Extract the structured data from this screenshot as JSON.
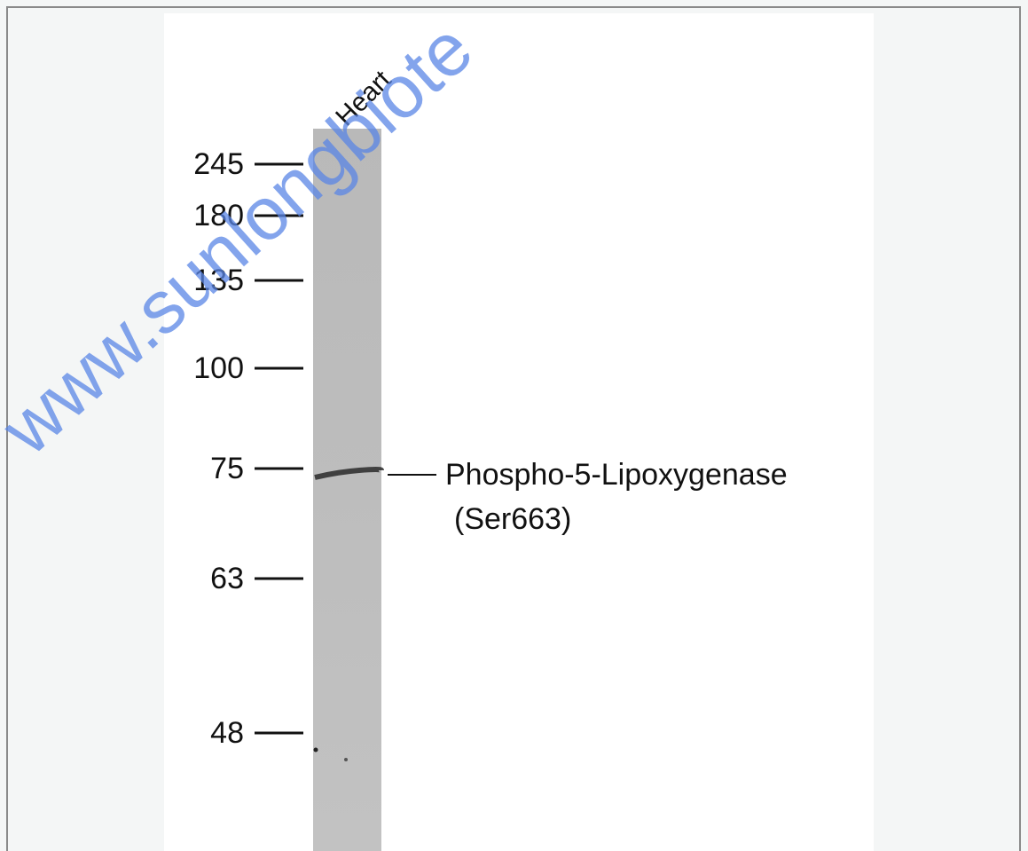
{
  "lane_label": "Heart",
  "markers": [
    245,
    180,
    135,
    100,
    75,
    63,
    48
  ],
  "band_label": {
    "line1": "Phospho-5-Lipoxygenase",
    "line2": "(Ser663)"
  },
  "watermark": "www.sunlongbiote"
}
